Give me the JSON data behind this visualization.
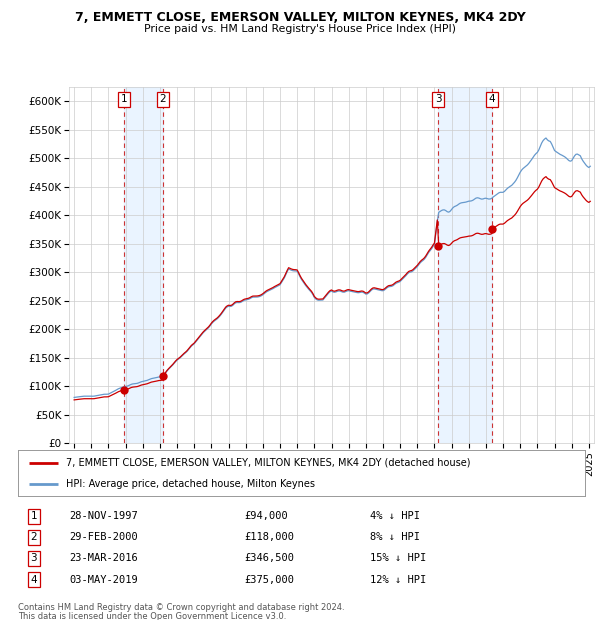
{
  "title1": "7, EMMETT CLOSE, EMERSON VALLEY, MILTON KEYNES, MK4 2DY",
  "title2": "Price paid vs. HM Land Registry's House Price Index (HPI)",
  "property_label": "7, EMMETT CLOSE, EMERSON VALLEY, MILTON KEYNES, MK4 2DY (detached house)",
  "hpi_label": "HPI: Average price, detached house, Milton Keynes",
  "footer1": "Contains HM Land Registry data © Crown copyright and database right 2024.",
  "footer2": "This data is licensed under the Open Government Licence v3.0.",
  "sales": [
    {
      "num": 1,
      "date": "28-NOV-1997",
      "year": 1997.91,
      "price": 94000,
      "pct": "4% ↓ HPI"
    },
    {
      "num": 2,
      "date": "29-FEB-2000",
      "year": 2000.17,
      "price": 118000,
      "pct": "8% ↓ HPI"
    },
    {
      "num": 3,
      "date": "23-MAR-2016",
      "year": 2016.23,
      "price": 346500,
      "pct": "15% ↓ HPI"
    },
    {
      "num": 4,
      "date": "03-MAY-2019",
      "year": 2019.34,
      "price": 375000,
      "pct": "12% ↓ HPI"
    }
  ],
  "ylim": [
    0,
    625000
  ],
  "xlim_start": 1994.7,
  "xlim_end": 2025.3,
  "yticks": [
    0,
    50000,
    100000,
    150000,
    200000,
    250000,
    300000,
    350000,
    400000,
    450000,
    500000,
    550000,
    600000
  ],
  "ytick_labels": [
    "£0",
    "£50K",
    "£100K",
    "£150K",
    "£200K",
    "£250K",
    "£300K",
    "£350K",
    "£400K",
    "£450K",
    "£500K",
    "£550K",
    "£600K"
  ],
  "xticks": [
    1995,
    1996,
    1997,
    1998,
    1999,
    2000,
    2001,
    2002,
    2003,
    2004,
    2005,
    2006,
    2007,
    2008,
    2009,
    2010,
    2011,
    2012,
    2013,
    2014,
    2015,
    2016,
    2017,
    2018,
    2019,
    2020,
    2021,
    2022,
    2023,
    2024,
    2025
  ],
  "property_color": "#cc0000",
  "hpi_color": "#6699cc",
  "vline_color": "#cc3333",
  "shade_color": "#ddeeff",
  "background_color": "#ffffff",
  "grid_color": "#cccccc"
}
